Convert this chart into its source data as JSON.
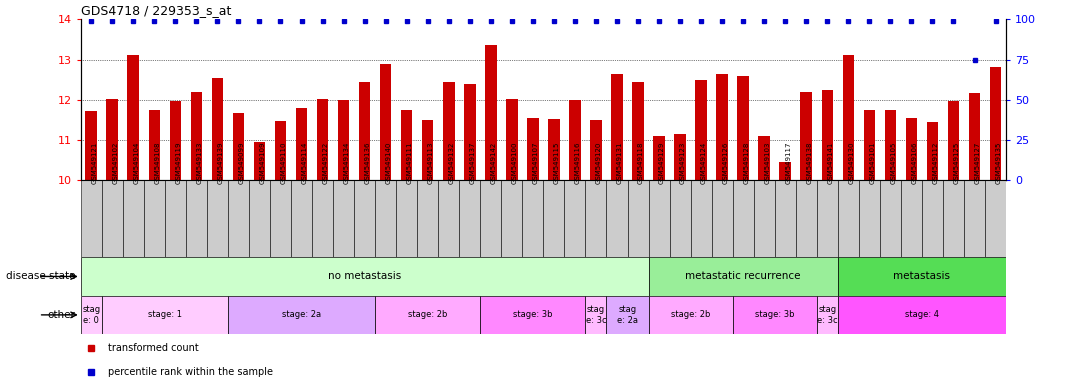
{
  "title": "GDS4718 / 229353_s_at",
  "samples": [
    "GSM549121",
    "GSM549102",
    "GSM549104",
    "GSM549108",
    "GSM549119",
    "GSM549133",
    "GSM549139",
    "GSM549099",
    "GSM549109",
    "GSM549110",
    "GSM549114",
    "GSM549122",
    "GSM549134",
    "GSM549136",
    "GSM549140",
    "GSM549111",
    "GSM549113",
    "GSM549132",
    "GSM549137",
    "GSM549142",
    "GSM549100",
    "GSM549107",
    "GSM549115",
    "GSM549116",
    "GSM549120",
    "GSM549131",
    "GSM549118",
    "GSM549129",
    "GSM549123",
    "GSM549124",
    "GSM549126",
    "GSM549128",
    "GSM549103",
    "GSM549117",
    "GSM549138",
    "GSM549141",
    "GSM549130",
    "GSM549101",
    "GSM549105",
    "GSM549106",
    "GSM549112",
    "GSM549125",
    "GSM549127",
    "GSM549135"
  ],
  "bar_values": [
    11.72,
    12.02,
    13.12,
    11.75,
    11.97,
    12.2,
    12.55,
    11.68,
    10.95,
    11.47,
    11.8,
    12.02,
    11.99,
    12.45,
    12.9,
    11.75,
    11.5,
    12.45,
    12.4,
    13.35,
    12.02,
    11.55,
    11.52,
    12.0,
    11.5,
    12.65,
    12.45,
    11.1,
    11.15,
    12.5,
    12.65,
    12.6,
    11.1,
    10.45,
    12.2,
    12.25,
    13.1,
    11.75,
    11.75,
    11.55,
    11.45,
    11.98,
    12.18,
    12.82
  ],
  "percentile_values": [
    99,
    99,
    99,
    99,
    99,
    99,
    99,
    99,
    99,
    99,
    99,
    99,
    99,
    99,
    99,
    99,
    99,
    99,
    99,
    99,
    99,
    99,
    99,
    99,
    99,
    99,
    99,
    99,
    99,
    99,
    99,
    99,
    99,
    99,
    99,
    99,
    99,
    99,
    99,
    99,
    99,
    99,
    75,
    99
  ],
  "bar_color": "#cc0000",
  "percentile_color": "#0000cc",
  "ylim_left": [
    10,
    14
  ],
  "ylim_right": [
    0,
    100
  ],
  "yticks_left": [
    10,
    11,
    12,
    13,
    14
  ],
  "yticks_right": [
    0,
    25,
    50,
    75,
    100
  ],
  "grid_yticks": [
    11,
    12,
    13
  ],
  "disease_state_groups": [
    {
      "label": "no metastasis",
      "start": 0,
      "end": 27,
      "color": "#ccffcc"
    },
    {
      "label": "metastatic recurrence",
      "start": 27,
      "end": 36,
      "color": "#99ee99"
    },
    {
      "label": "metastasis",
      "start": 36,
      "end": 44,
      "color": "#55dd55"
    }
  ],
  "stage_groups": [
    {
      "label": "stag\ne: 0",
      "start": 0,
      "end": 1,
      "color": "#ffccff"
    },
    {
      "label": "stage: 1",
      "start": 1,
      "end": 7,
      "color": "#ffccff"
    },
    {
      "label": "stage: 2a",
      "start": 7,
      "end": 14,
      "color": "#ddaaff"
    },
    {
      "label": "stage: 2b",
      "start": 14,
      "end": 19,
      "color": "#ffaaff"
    },
    {
      "label": "stage: 3b",
      "start": 19,
      "end": 24,
      "color": "#ff88ff"
    },
    {
      "label": "stag\ne: 3c",
      "start": 24,
      "end": 25,
      "color": "#ffbbff"
    },
    {
      "label": "stag\ne: 2a",
      "start": 25,
      "end": 27,
      "color": "#ddaaff"
    },
    {
      "label": "stage: 2b",
      "start": 27,
      "end": 31,
      "color": "#ffaaff"
    },
    {
      "label": "stage: 3b",
      "start": 31,
      "end": 35,
      "color": "#ff88ff"
    },
    {
      "label": "stag\ne: 3c",
      "start": 35,
      "end": 36,
      "color": "#ffbbff"
    },
    {
      "label": "stage: 4",
      "start": 36,
      "end": 44,
      "color": "#ff55ff"
    }
  ],
  "legend_items": [
    {
      "label": "transformed count",
      "color": "#cc0000"
    },
    {
      "label": "percentile rank within the sample",
      "color": "#0000cc"
    }
  ],
  "background_color": "#ffffff",
  "tick_label_bg": "#cccccc"
}
